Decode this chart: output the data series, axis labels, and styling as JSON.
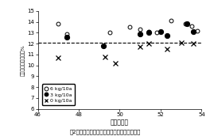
{
  "xlabel": "穂揃期葉色",
  "ylabel": "タンパク質含有率　%",
  "xlim": [
    46,
    54
  ],
  "ylim": [
    6,
    15
  ],
  "yticks": [
    6,
    7,
    8,
    9,
    10,
    11,
    12,
    13,
    14,
    15
  ],
  "xticks": [
    46,
    48,
    50,
    52,
    54
  ],
  "dashed_y": 12.1,
  "series": [
    {
      "label": "6 kg/10a",
      "marker": "o",
      "fillstyle": "none",
      "color": "black",
      "x": [
        47.0,
        47.4,
        49.5,
        50.5,
        51.0,
        51.4,
        51.8,
        52.5,
        53.2,
        53.5,
        53.8
      ],
      "y": [
        13.8,
        12.9,
        13.0,
        13.5,
        13.3,
        13.1,
        13.0,
        14.1,
        13.85,
        13.6,
        13.2
      ]
    },
    {
      "label": "3 kg/10a",
      "marker": "o",
      "fillstyle": "full",
      "color": "black",
      "x": [
        47.4,
        49.2,
        51.0,
        51.4,
        52.0,
        52.3,
        53.3,
        53.6
      ],
      "y": [
        12.6,
        11.8,
        12.9,
        13.0,
        13.1,
        12.7,
        13.8,
        13.1
      ]
    },
    {
      "label": "0 kg/10a",
      "marker": "x",
      "fillstyle": "none",
      "color": "black",
      "x": [
        47.0,
        49.3,
        49.8,
        51.0,
        51.4,
        52.3,
        53.0,
        53.6
      ],
      "y": [
        10.7,
        10.8,
        10.2,
        11.7,
        12.0,
        11.5,
        12.1,
        12.0
      ]
    }
  ],
  "caption": "図2　穂揃期追肥窒素量別のタンパク質含有率",
  "background_color": "#ffffff"
}
